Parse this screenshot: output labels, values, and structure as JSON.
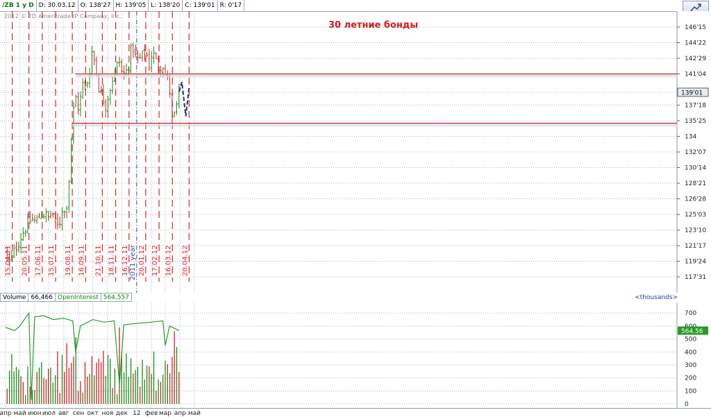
{
  "header": {
    "symbol": "/ZB 1 y D",
    "date": "D: 30.03.12",
    "open": "O: 138'27",
    "high": "H: 139'05",
    "low": "L: 138'20",
    "close": "C: 139'01",
    "range": "R: 0'17"
  },
  "copyright": "2012 © TD Ameritrade IP Company, Inc.",
  "annotation": "30 летние бонды",
  "colors": {
    "up": "#1a8a1a",
    "down": "#cc2222",
    "marker": "#e02020",
    "level": "#cc2222",
    "forecast": "#1f2f7a",
    "oi": "#2a9a2a",
    "grid": "#a8b4c4",
    "year": "#2a58b0"
  },
  "chart_data": [
    {
      "type": "candlestick",
      "title": "30 летние бонды",
      "yticks": [
        "146'15",
        "144'22",
        "142'29",
        "141'04",
        "139'01",
        "137'18",
        "135'25",
        "134",
        "132'07",
        "130'14",
        "128'21",
        "126'28",
        "125'03",
        "123'10",
        "121'17",
        "119'24",
        "117'31"
      ],
      "ylim_points": [
        117.97,
        146.47
      ],
      "last_price": "139'01",
      "levels": [
        141.12,
        135.5
      ],
      "x_months": [
        "апр",
        "май",
        "июн",
        "июл",
        "авг",
        "сен",
        "окт",
        "ноя",
        "дек",
        "12",
        "фев",
        "мар",
        "апр",
        "май"
      ],
      "year_label": "2011 year",
      "cycle_marks": [
        "15.04.11",
        "20.05.11",
        "17.06.11",
        "15.07.11",
        "19.08.11",
        "16.09.11",
        "21.10.11",
        "18.11.11",
        "16.12.11",
        "20.01.12",
        "17.02.12",
        "16.03.12",
        "20.04.12"
      ],
      "close_path": [
        {
          "date": "2011-04-01",
          "close": 121.0
        },
        {
          "date": "2011-04-08",
          "close": 119.5
        },
        {
          "date": "2011-04-15",
          "close": 120.2
        },
        {
          "date": "2011-04-22",
          "close": 121.3
        },
        {
          "date": "2011-04-29",
          "close": 122.0
        },
        {
          "date": "2011-05-06",
          "close": 122.9
        },
        {
          "date": "2011-05-13",
          "close": 123.6
        },
        {
          "date": "2011-05-20",
          "close": 124.2
        },
        {
          "date": "2011-05-27",
          "close": 124.6
        },
        {
          "date": "2011-06-03",
          "close": 124.2
        },
        {
          "date": "2011-06-10",
          "close": 124.8
        },
        {
          "date": "2011-06-17",
          "close": 125.3
        },
        {
          "date": "2011-06-24",
          "close": 125.0
        },
        {
          "date": "2011-07-01",
          "close": 124.6
        },
        {
          "date": "2011-07-08",
          "close": 125.5
        },
        {
          "date": "2011-07-15",
          "close": 123.9
        },
        {
          "date": "2011-07-22",
          "close": 123.6
        },
        {
          "date": "2011-07-29",
          "close": 125.9
        },
        {
          "date": "2011-08-05",
          "close": 125.0
        },
        {
          "date": "2011-08-12",
          "close": 129.0
        },
        {
          "date": "2011-08-19",
          "close": 136.0
        },
        {
          "date": "2011-08-26",
          "close": 138.5
        },
        {
          "date": "2011-09-02",
          "close": 137.0
        },
        {
          "date": "2011-09-09",
          "close": 140.0
        },
        {
          "date": "2011-09-16",
          "close": 139.5
        },
        {
          "date": "2011-09-23",
          "close": 141.0
        },
        {
          "date": "2011-09-30",
          "close": 144.0
        },
        {
          "date": "2011-10-07",
          "close": 142.0
        },
        {
          "date": "2011-10-14",
          "close": 139.5
        },
        {
          "date": "2011-10-21",
          "close": 138.5
        },
        {
          "date": "2011-10-28",
          "close": 137.5
        },
        {
          "date": "2011-11-04",
          "close": 139.0
        },
        {
          "date": "2011-11-11",
          "close": 140.5
        },
        {
          "date": "2011-11-18",
          "close": 141.5
        },
        {
          "date": "2011-11-25",
          "close": 142.8
        },
        {
          "date": "2011-12-02",
          "close": 141.0
        },
        {
          "date": "2011-12-09",
          "close": 141.2
        },
        {
          "date": "2011-12-16",
          "close": 142.5
        },
        {
          "date": "2011-12-23",
          "close": 144.5
        },
        {
          "date": "2011-12-30",
          "close": 143.0
        },
        {
          "date": "2012-01-06",
          "close": 142.6
        },
        {
          "date": "2012-01-13",
          "close": 143.2
        },
        {
          "date": "2012-01-20",
          "close": 143.8
        },
        {
          "date": "2012-01-27",
          "close": 142.0
        },
        {
          "date": "2012-02-03",
          "close": 143.8
        },
        {
          "date": "2012-02-10",
          "close": 142.6
        },
        {
          "date": "2012-02-17",
          "close": 141.8
        },
        {
          "date": "2012-02-24",
          "close": 142.4
        },
        {
          "date": "2012-03-02",
          "close": 140.8
        },
        {
          "date": "2012-03-09",
          "close": 140.2
        },
        {
          "date": "2012-03-16",
          "close": 135.4
        },
        {
          "date": "2012-03-23",
          "close": 136.8
        },
        {
          "date": "2012-03-30",
          "close": 139.03
        }
      ],
      "forecast_path": [
        {
          "date": "2012-03-30",
          "close": 139.1
        },
        {
          "date": "2012-04-05",
          "close": 140.2
        },
        {
          "date": "2012-04-13",
          "close": 136.3
        },
        {
          "date": "2012-04-20",
          "close": 139.5
        }
      ]
    },
    {
      "type": "bar",
      "title": "Volume",
      "volume_label": "Volume",
      "volume_value": "66,466",
      "oi_label": "OpenInterest",
      "oi_value": "564,557",
      "oi_tag": "564.56",
      "units": "<thousands>",
      "yticks": [
        0,
        100,
        200,
        300,
        400,
        500,
        600,
        700
      ],
      "ylim": [
        0,
        760
      ],
      "oi_series": [
        {
          "date": "2011-04-01",
          "value": 590
        },
        {
          "date": "2011-04-20",
          "value": 565
        },
        {
          "date": "2011-05-01",
          "value": 600
        },
        {
          "date": "2011-05-20",
          "value": 700
        },
        {
          "date": "2011-05-25",
          "value": 30
        },
        {
          "date": "2011-06-01",
          "value": 670
        },
        {
          "date": "2011-06-20",
          "value": 680
        },
        {
          "date": "2011-07-10",
          "value": 650
        },
        {
          "date": "2011-08-01",
          "value": 660
        },
        {
          "date": "2011-08-20",
          "value": 640
        },
        {
          "date": "2011-08-26",
          "value": 400
        },
        {
          "date": "2011-09-05",
          "value": 600
        },
        {
          "date": "2011-10-01",
          "value": 650
        },
        {
          "date": "2011-10-25",
          "value": 630
        },
        {
          "date": "2011-11-15",
          "value": 640
        },
        {
          "date": "2011-11-26",
          "value": 150
        },
        {
          "date": "2011-12-05",
          "value": 610
        },
        {
          "date": "2012-01-01",
          "value": 620
        },
        {
          "date": "2012-02-01",
          "value": 630
        },
        {
          "date": "2012-02-25",
          "value": 640
        },
        {
          "date": "2012-03-01",
          "value": 450
        },
        {
          "date": "2012-03-10",
          "value": 600
        },
        {
          "date": "2012-03-30",
          "value": 565
        }
      ]
    }
  ]
}
